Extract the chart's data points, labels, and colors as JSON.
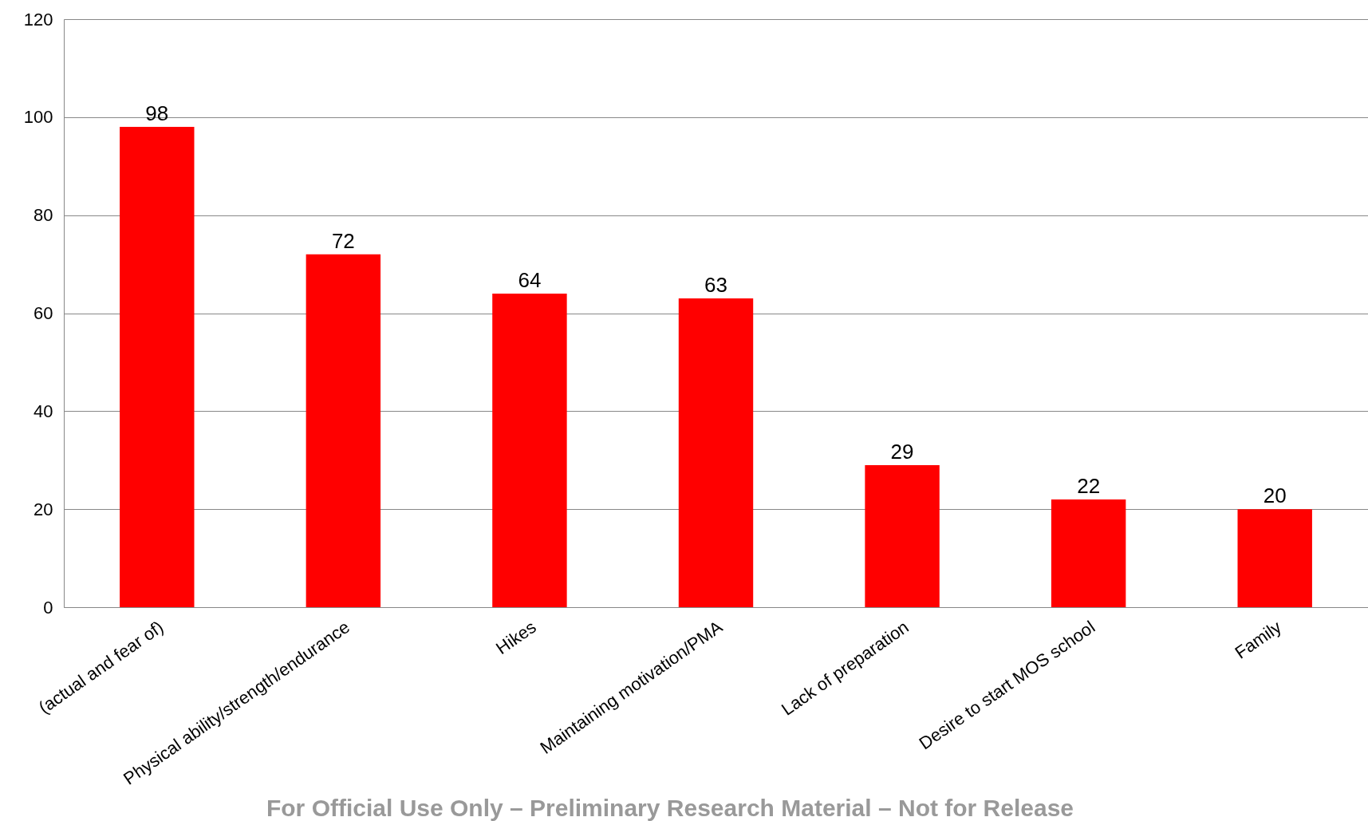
{
  "chart_data": {
    "type": "bar",
    "categories": [
      "(actual and fear of)",
      "Physical ability/strength/endurance",
      "Hikes",
      "Maintaining motivation/PMA",
      "Lack of preparation",
      "Desire to start MOS school",
      "Family"
    ],
    "values": [
      98,
      72,
      64,
      63,
      29,
      22,
      20
    ],
    "color": "#ff0000",
    "ylim": [
      0,
      120
    ],
    "yticks": [
      0,
      20,
      40,
      60,
      80,
      100,
      120
    ],
    "grid": "y",
    "data_labels": true,
    "annotations": [
      "For Official Use Only – Preliminary Research Material – Not for Release"
    ]
  }
}
